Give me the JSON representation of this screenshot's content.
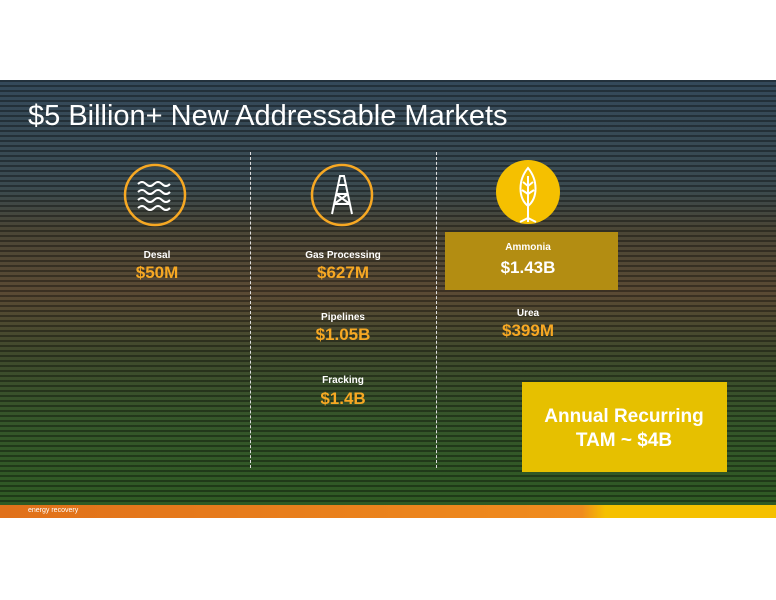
{
  "header": {
    "title": "$5 Billion+ New Addressable Markets"
  },
  "markets": [
    {
      "label": "Desal",
      "value": "$50M"
    },
    {
      "label": "Gas Processing",
      "value": "$627M"
    },
    {
      "label": "Pipelines",
      "value": "$1.05B"
    },
    {
      "label": "Fracking",
      "value": "$1.4B"
    },
    {
      "label": "Ammonia",
      "value": "$1.43B"
    },
    {
      "label": "Urea",
      "value": "$399M"
    }
  ],
  "summary": {
    "lines": [
      "Annual Recurring",
      "TAM ~ $4B"
    ]
  },
  "footer": {
    "logo": "energy recovery"
  }
}
